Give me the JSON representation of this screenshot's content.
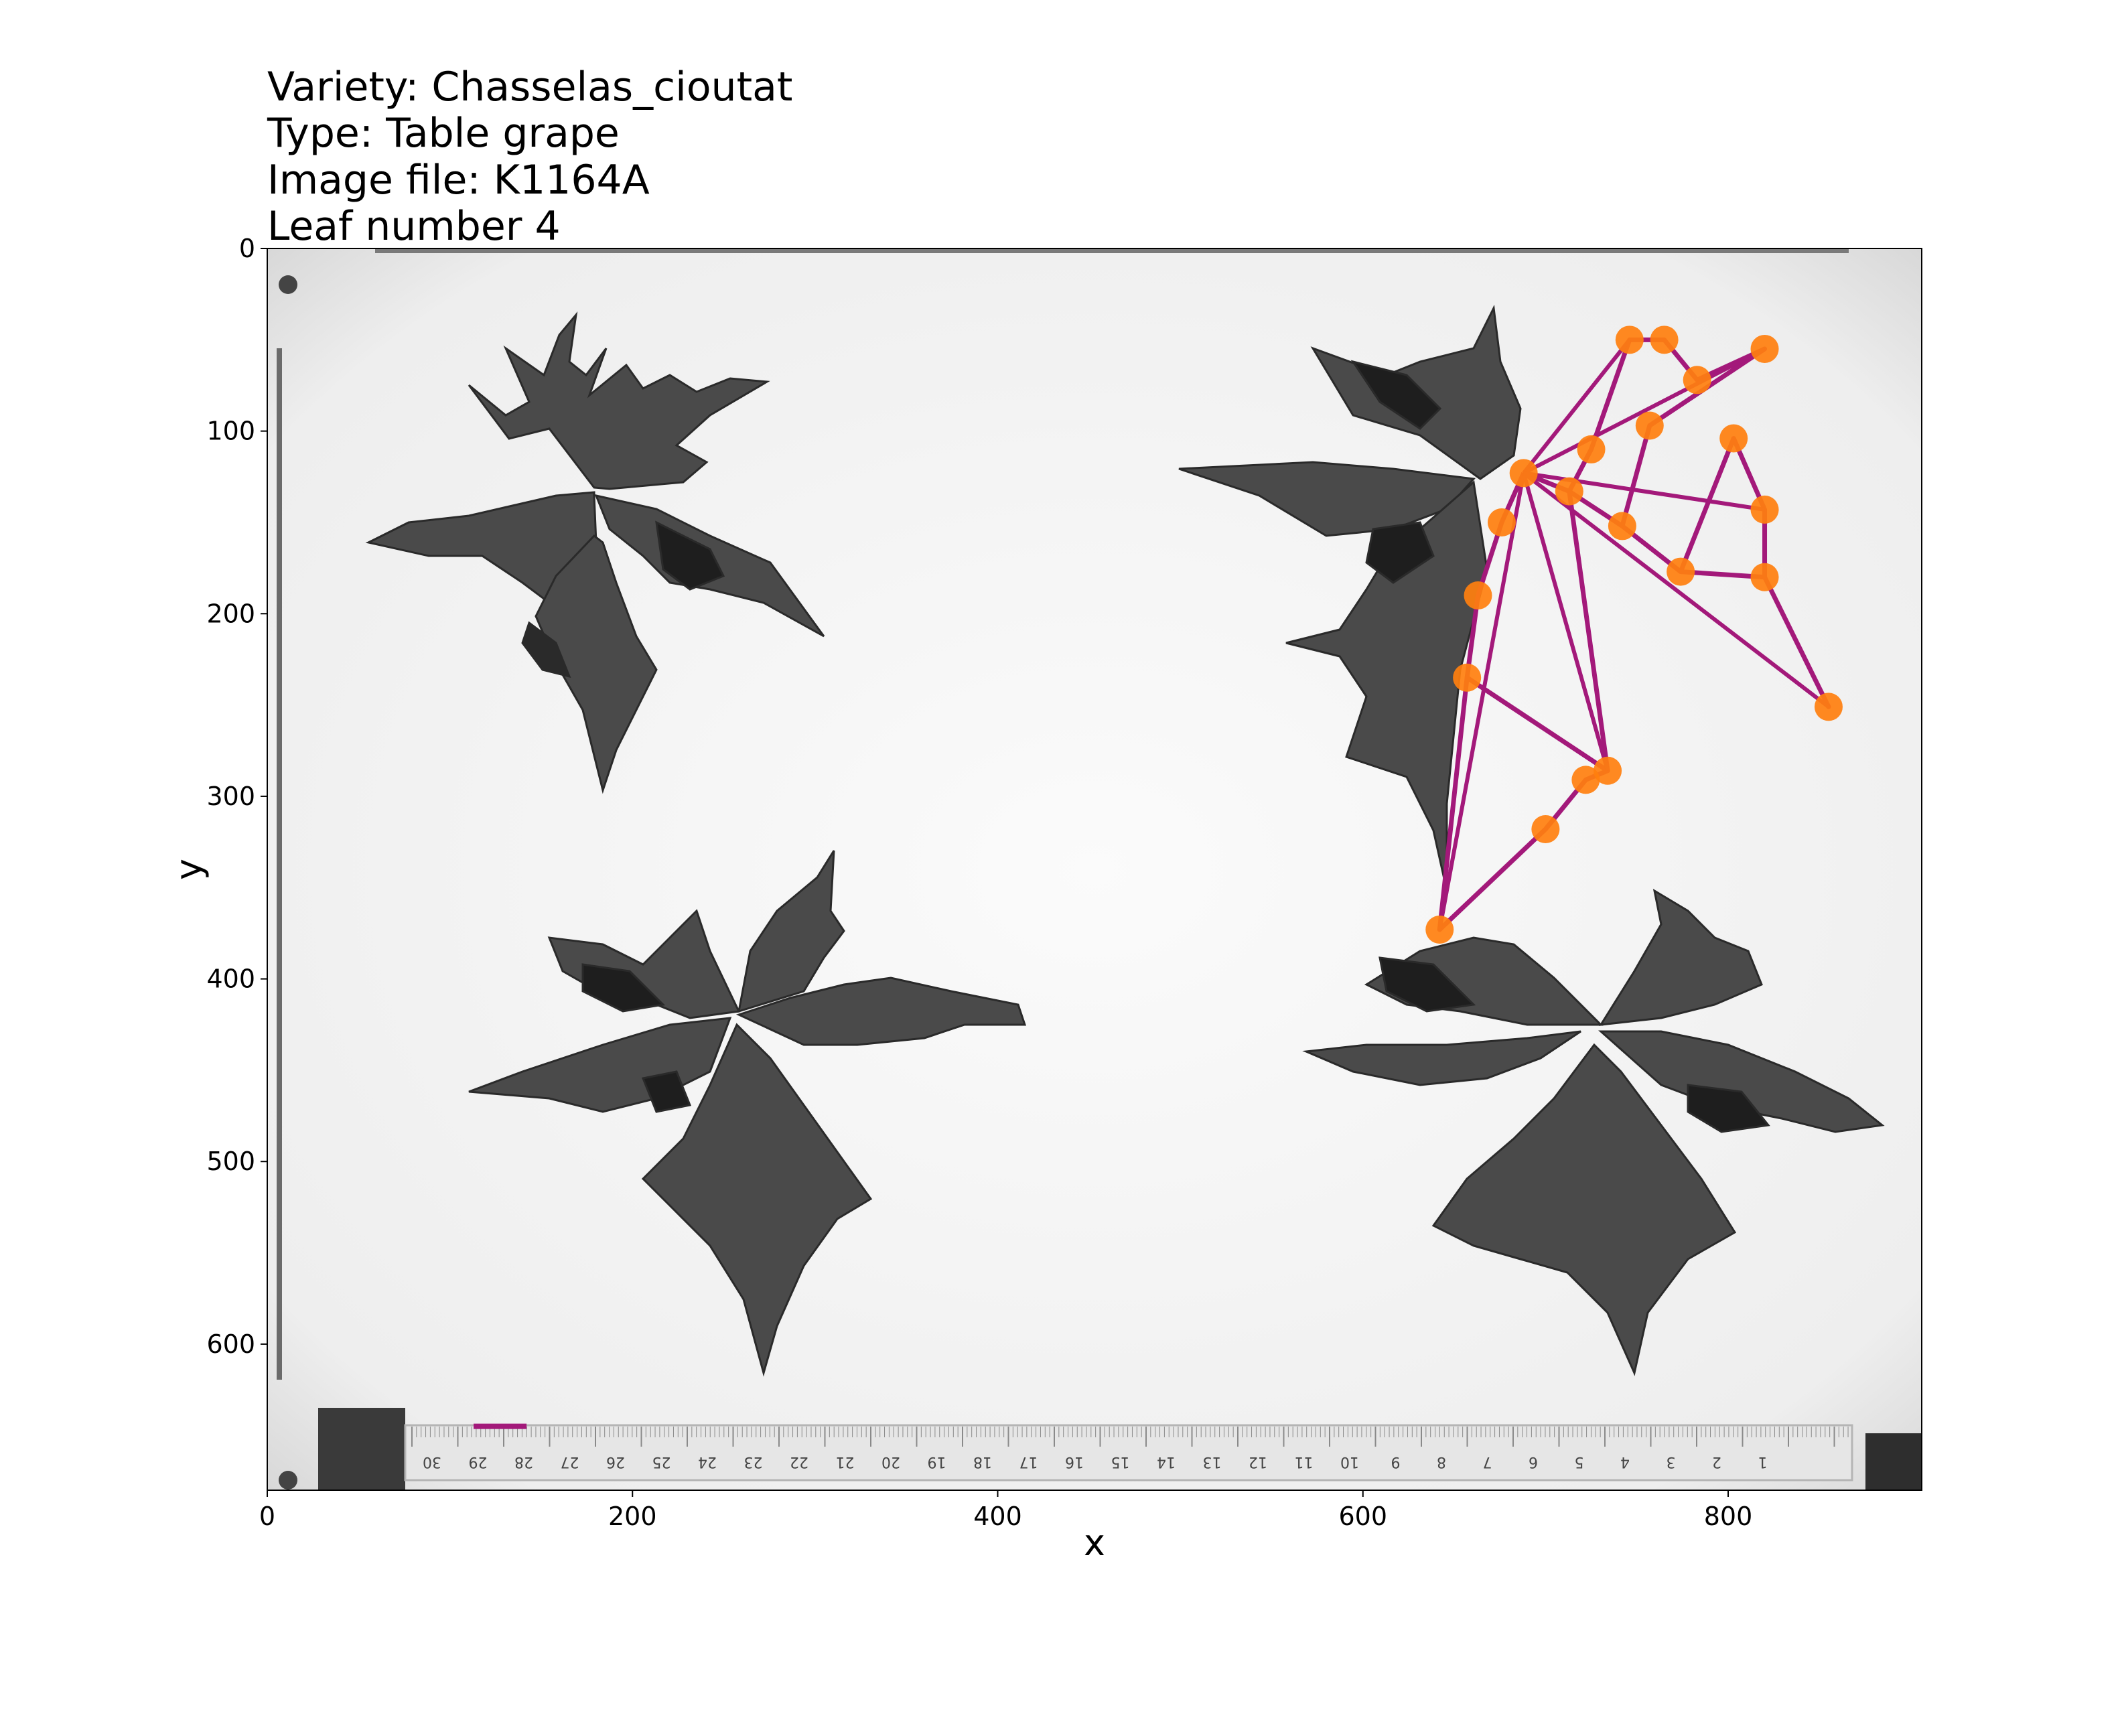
{
  "title_lines": [
    "Variety: Chasselas_cioutat",
    "Type: Table grape",
    "Image file: K1164A",
    "Leaf number 4"
  ],
  "ruler_numbers": [
    "30",
    "29",
    "28",
    "27",
    "26",
    "25",
    "24",
    "23",
    "22",
    "21",
    "20",
    "19",
    "18",
    "17",
    "16",
    "15",
    "14",
    "13",
    "12",
    "11",
    "10",
    "9",
    "8",
    "7",
    "6",
    "5",
    "4",
    "3",
    "2",
    "1"
  ],
  "colors": {
    "outline": "#a3197a",
    "landmark": "#ff7f0e",
    "leaf": "#4a4a4a",
    "leaf_dark": "#222222",
    "background_photo": "#f2f2f2"
  },
  "chart_data": {
    "type": "scatter",
    "title": "Variety: Chasselas_cioutat\nType: Table grape\nImage file: K1164A\nLeaf number 4",
    "xlabel": "x",
    "ylabel": "y",
    "xlim": [
      0,
      906
    ],
    "ylim": [
      680,
      0
    ],
    "y_inverted": true,
    "xticks": [
      0,
      200,
      400,
      600,
      800
    ],
    "yticks": [
      0,
      100,
      200,
      300,
      400,
      500,
      600
    ],
    "landmarks": {
      "x": [
        642,
        700,
        722,
        734,
        657,
        663,
        676,
        688,
        713,
        725,
        746,
        765,
        783,
        820,
        855,
        820,
        820,
        803,
        774,
        742,
        757
      ],
      "y": [
        373,
        318,
        291,
        286,
        235,
        190,
        150,
        123,
        133,
        110,
        50,
        50,
        72,
        55,
        251,
        180,
        143,
        104,
        177,
        152,
        97
      ]
    },
    "scale_bar": {
      "x": [
        113,
        142
      ],
      "y": [
        645,
        645
      ]
    }
  }
}
